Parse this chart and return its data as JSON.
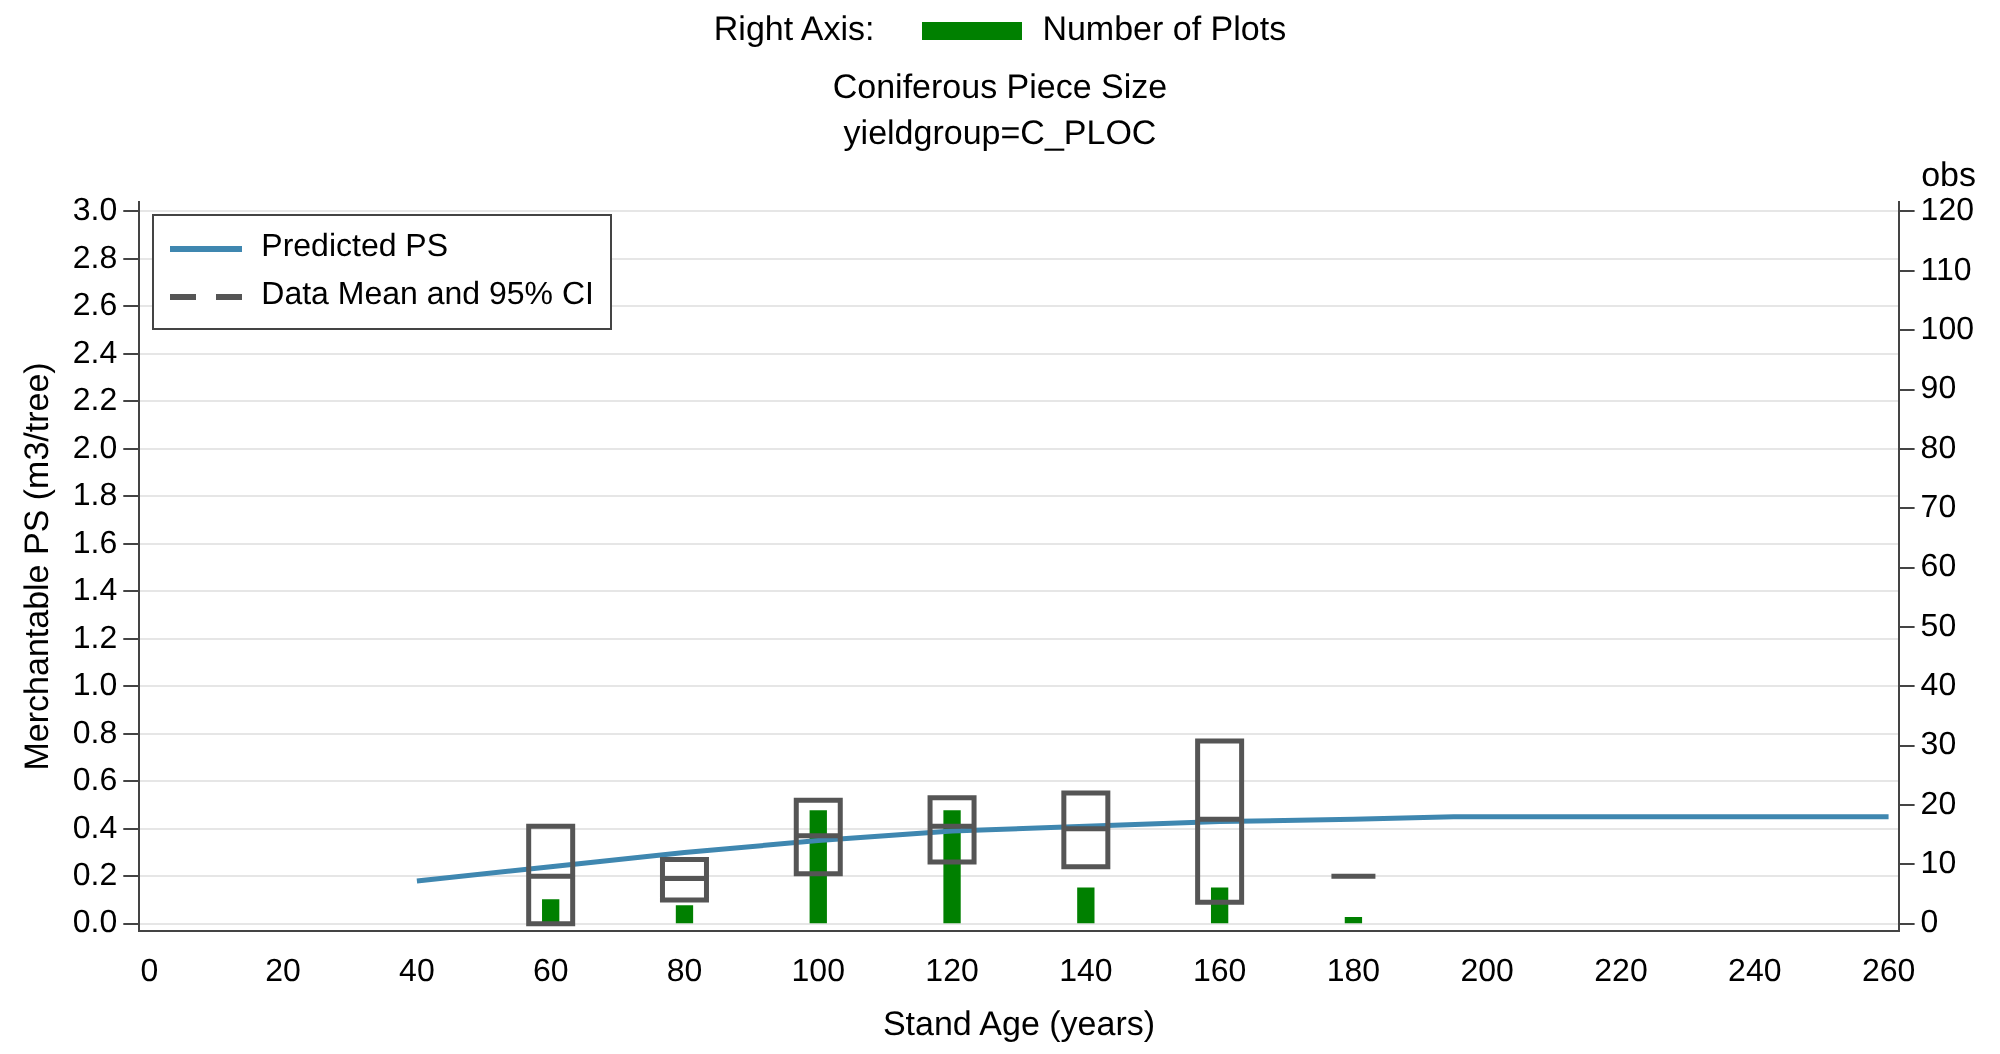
{
  "chart_data": {
    "type": "line",
    "title": "Coniferous Piece Size",
    "subtitle": "yieldgroup=C_PLOC",
    "xlabel": "Stand Age (years)",
    "ylabel": "Merchantable PS (m3/tree)",
    "y2label": "obs",
    "legend_title": "Right Axis:",
    "legend": "top left",
    "grid": "y",
    "xlim": [
      -1.5,
      261.5
    ],
    "xticks": [
      0,
      20,
      40,
      60,
      80,
      100,
      120,
      140,
      160,
      180,
      200,
      220,
      240,
      260
    ],
    "ylim": [
      -0.03,
      3.04
    ],
    "yticks": [
      {
        "value": 0,
        "label": "0.0"
      },
      0.2,
      0.4,
      0.6,
      0.8,
      {
        "value": 1,
        "label": "1.0"
      },
      1.2,
      1.4,
      1.6,
      1.8,
      {
        "value": 2,
        "label": "2.0"
      },
      2.2,
      2.4,
      2.6,
      2.8,
      {
        "value": 3,
        "label": "3.0"
      }
    ],
    "y2lim": [
      -1.2,
      121.6
    ],
    "y2ticks": [
      0,
      10,
      20,
      30,
      40,
      50,
      60,
      70,
      80,
      90,
      100,
      110,
      120
    ],
    "series": [
      {
        "name": "Predicted PS",
        "color": "#3f87b0",
        "marker": "none",
        "x": [
          40,
          60,
          80,
          100,
          120,
          140,
          160,
          180,
          195,
          260
        ],
        "values": [
          0.18,
          0.24,
          0.3,
          0.35,
          0.39,
          0.41,
          0.43,
          0.44,
          0.45,
          0.45
        ]
      },
      {
        "name": "Data Mean and 95% CI",
        "type": "box",
        "color": "#555555",
        "x": [
          60,
          80,
          100,
          120,
          140,
          160,
          180
        ],
        "boxes": [
          {
            "low": 0.0,
            "q1": 0.0,
            "median": 0.2,
            "q3": 0.41,
            "high": 0.41
          },
          {
            "low": 0.1,
            "q1": 0.1,
            "median": 0.19,
            "q3": 0.27,
            "high": 0.27
          },
          {
            "low": 0.21,
            "q1": 0.21,
            "median": 0.37,
            "q3": 0.52,
            "high": 0.52
          },
          {
            "low": 0.26,
            "q1": 0.26,
            "median": 0.41,
            "q3": 0.53,
            "high": 0.53
          },
          {
            "low": 0.24,
            "q1": 0.24,
            "median": 0.4,
            "q3": 0.55,
            "high": 0.55
          },
          {
            "low": 0.09,
            "q1": 0.09,
            "median": 0.44,
            "q3": 0.77,
            "high": 0.77
          },
          {
            "low": 0.2,
            "q1": 0.2,
            "median": 0.2,
            "q3": 0.2,
            "high": 0.2
          }
        ]
      },
      {
        "name": "Number of Plots",
        "type": "bar",
        "axis": "y2",
        "color": "#008000",
        "x": [
          60,
          80,
          100,
          120,
          140,
          160,
          180
        ],
        "values": [
          4,
          3,
          19,
          19,
          6,
          6,
          1
        ]
      }
    ]
  }
}
